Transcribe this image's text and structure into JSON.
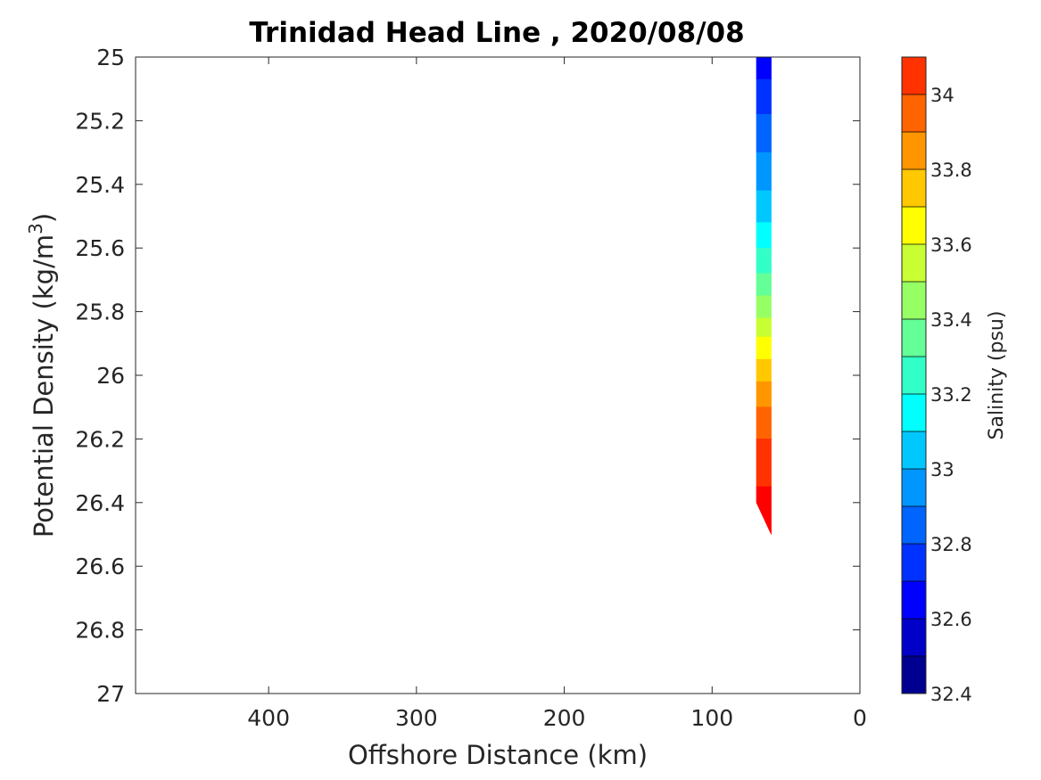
{
  "chart_data": {
    "type": "filled-contour",
    "title": "Trinidad Head Line , 2020/08/08",
    "xlabel": "Offshore Distance (km)",
    "ylabel": "Potential Density (kg/m",
    "ylabel_sup": "3",
    "ylabel_close": ")",
    "x_reversed": true,
    "y_reversed": true,
    "xlim": [
      0,
      490
    ],
    "ylim": [
      25,
      27
    ],
    "xticks": [
      400,
      300,
      200,
      100,
      0
    ],
    "xtick_labels": [
      "400",
      "300",
      "200",
      "100",
      "0"
    ],
    "yticks": [
      25,
      25.2,
      25.4,
      25.6,
      25.8,
      26,
      26.2,
      26.4,
      26.6,
      26.8,
      27
    ],
    "ytick_labels": [
      "25",
      "25.2",
      "25.4",
      "25.6",
      "25.8",
      "26",
      "26.2",
      "26.4",
      "26.6",
      "26.8",
      "27"
    ],
    "colorbar": {
      "label": "Salinity (psu)",
      "range": [
        32.4,
        34.1
      ],
      "ticks": [
        32.4,
        32.6,
        32.8,
        33,
        33.2,
        33.4,
        33.6,
        33.8,
        34
      ],
      "tick_labels": [
        "32.4",
        "32.6",
        "32.8",
        "33",
        "33.2",
        "33.4",
        "33.6",
        "33.8",
        "34"
      ],
      "levels": [
        32.4,
        32.5,
        32.6,
        32.7,
        32.8,
        32.9,
        33.0,
        33.1,
        33.2,
        33.3,
        33.4,
        33.5,
        33.6,
        33.7,
        33.8,
        33.9,
        34.0,
        34.1
      ],
      "colors": [
        "#000090",
        "#0000c8",
        "#0000ff",
        "#0032ff",
        "#0064ff",
        "#0096ff",
        "#00c8ff",
        "#00ffff",
        "#32ffc8",
        "#64ff96",
        "#96ff64",
        "#c8ff32",
        "#ffff00",
        "#ffc800",
        "#ff9600",
        "#ff6400",
        "#ff3200",
        "#ff0000",
        "#c80000"
      ]
    },
    "section": {
      "x_left_km": 70,
      "x_right_km": 60,
      "bands": [
        {
          "y0": 25.0,
          "y1": 25.07,
          "color": "#0000ff"
        },
        {
          "y0": 25.07,
          "y1": 25.18,
          "color": "#0032ff"
        },
        {
          "y0": 25.18,
          "y1": 25.3,
          "color": "#0064ff"
        },
        {
          "y0": 25.3,
          "y1": 25.42,
          "color": "#0096ff"
        },
        {
          "y0": 25.42,
          "y1": 25.52,
          "color": "#00c8ff"
        },
        {
          "y0": 25.52,
          "y1": 25.6,
          "color": "#00ffff"
        },
        {
          "y0": 25.6,
          "y1": 25.68,
          "color": "#32ffc8"
        },
        {
          "y0": 25.68,
          "y1": 25.75,
          "color": "#64ff96"
        },
        {
          "y0": 25.75,
          "y1": 25.82,
          "color": "#96ff64"
        },
        {
          "y0": 25.82,
          "y1": 25.88,
          "color": "#c8ff32"
        },
        {
          "y0": 25.88,
          "y1": 25.95,
          "color": "#ffff00"
        },
        {
          "y0": 25.95,
          "y1": 26.02,
          "color": "#ffc800"
        },
        {
          "y0": 26.02,
          "y1": 26.1,
          "color": "#ff9600"
        },
        {
          "y0": 26.1,
          "y1": 26.2,
          "color": "#ff6400"
        },
        {
          "y0": 26.2,
          "y1": 26.35,
          "color": "#ff3200"
        },
        {
          "y0": 26.35,
          "y1": 26.5,
          "color": "#ff0000"
        }
      ],
      "bottom_left": 26.4,
      "bottom_right": 26.5
    }
  }
}
